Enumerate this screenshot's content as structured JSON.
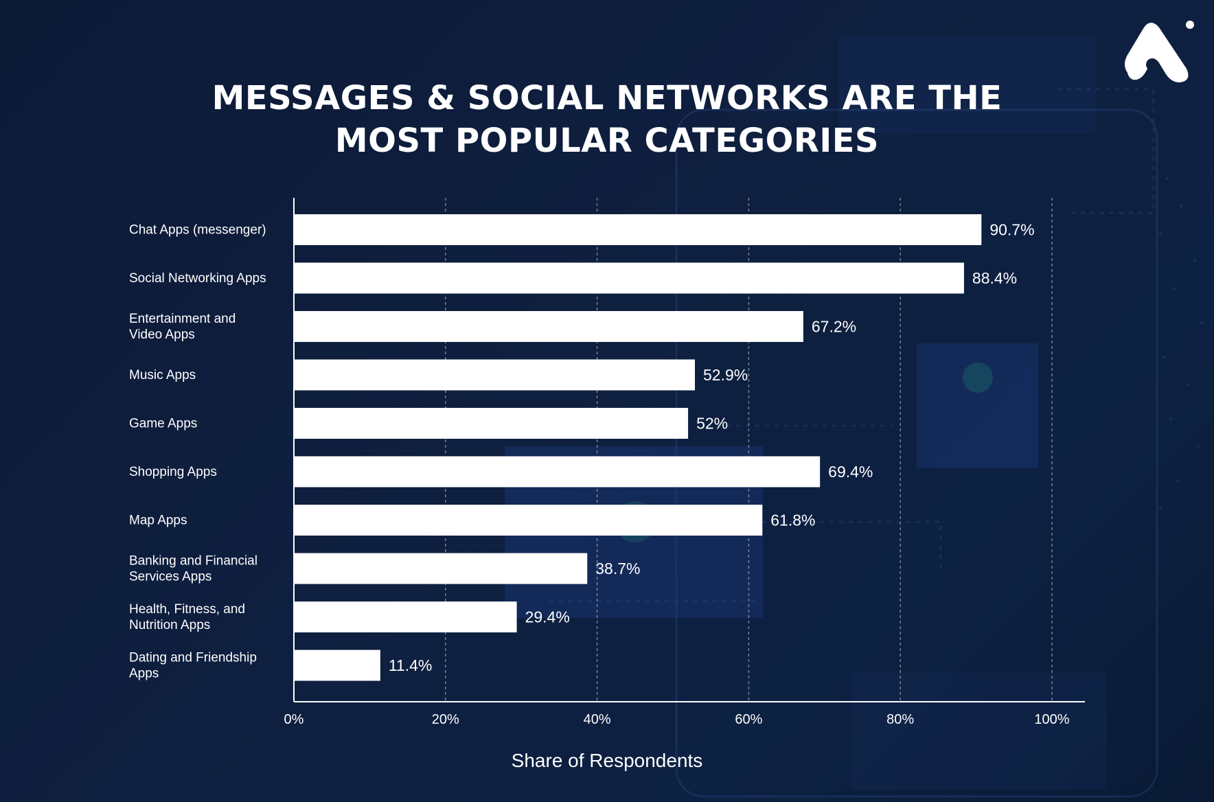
{
  "title": {
    "line1": "MESSAGES & SOCIAL NETWORKS ARE THE",
    "line2": "MOST POPULAR CATEGORIES"
  },
  "colors": {
    "background": "#0f1f3f",
    "bar": "#ffffff",
    "grid": "#c9d2e3",
    "text": "#ffffff"
  },
  "logo": {
    "icon": "brand-a-logo-icon"
  },
  "chart_data": {
    "type": "bar",
    "orientation": "horizontal",
    "categories": [
      "Chat Apps (messenger)",
      "Social Networking Apps",
      "Entertainment and Video Apps",
      "Music Apps",
      "Game Apps",
      "Shopping Apps",
      "Map Apps",
      "Banking and Financial Services Apps",
      "Health, Fitness, and Nutrition Apps",
      "Dating and Friendship Apps"
    ],
    "category_lines": [
      [
        "Chat Apps (messenger)"
      ],
      [
        "Social Networking Apps"
      ],
      [
        "Entertainment and",
        "Video Apps"
      ],
      [
        "Music Apps"
      ],
      [
        "Game Apps"
      ],
      [
        "Shopping Apps"
      ],
      [
        "Map Apps"
      ],
      [
        "Banking and Financial",
        "Services Apps"
      ],
      [
        "Health, Fitness, and",
        "Nutrition Apps"
      ],
      [
        "Dating and Friendship",
        "Apps"
      ]
    ],
    "values": [
      90.7,
      88.4,
      67.2,
      52.9,
      52,
      69.4,
      61.8,
      38.7,
      29.4,
      11.4
    ],
    "value_labels": [
      "90.7%",
      "88.4%",
      "67.2%",
      "52.9%",
      "52%",
      "69.4%",
      "61.8%",
      "38.7%",
      "29.4%",
      "11.4%"
    ],
    "xlim": [
      0,
      100
    ],
    "xticks": [
      0,
      20,
      40,
      60,
      80,
      100
    ],
    "xtick_labels": [
      "0%",
      "20%",
      "40%",
      "60%",
      "80%",
      "100%"
    ],
    "xlabel": "Share of Respondents",
    "ylabel": "",
    "grid": "vertical dashed"
  }
}
